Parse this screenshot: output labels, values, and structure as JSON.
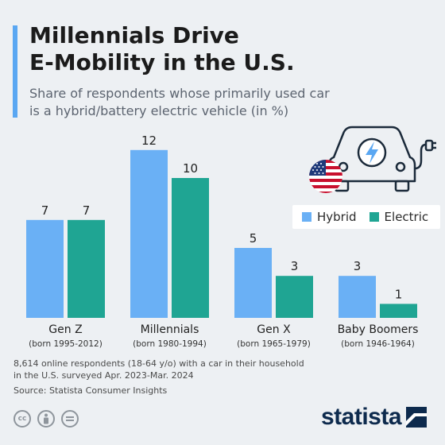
{
  "header": {
    "title_line1": "Millennials Drive",
    "title_line2": "E-Mobility in the U.S.",
    "subtitle_line1": "Share of respondents whose primarily used car",
    "subtitle_line2": "is a hybrid/battery electric vehicle (in %)"
  },
  "colors": {
    "hybrid": "#6ab0f5",
    "electric": "#1fa593",
    "accent": "#5aa7f2",
    "brand": "#0d2a4d"
  },
  "chart_data": {
    "type": "bar",
    "categories": [
      "Gen Z",
      "Millennials",
      "Gen X",
      "Baby Boomers"
    ],
    "category_sublabels": [
      "(born 1995-2012)",
      "(born 1980-1994)",
      "(born 1965-1979)",
      "(born 1946-1964)"
    ],
    "series": [
      {
        "name": "Hybrid",
        "values": [
          7,
          12,
          5,
          3
        ]
      },
      {
        "name": "Electric",
        "values": [
          7,
          10,
          3,
          1
        ]
      }
    ],
    "title": "Millennials Drive E-Mobility in the U.S.",
    "ylim": [
      0,
      12
    ],
    "grid": false,
    "legend_position": "right"
  },
  "legend": {
    "hybrid_label": "Hybrid",
    "electric_label": "Electric"
  },
  "notes": {
    "line1": "8,614 online respondents (18-64 y/o) with a car in their household",
    "line2": "in the U.S. surveyed Apr. 2023-Mar. 2024",
    "source": "Source: Statista Consumer Insights"
  },
  "footer": {
    "brand": "statista",
    "icons": [
      "cc-icon",
      "attribution-icon",
      "no-derivatives-icon"
    ]
  }
}
